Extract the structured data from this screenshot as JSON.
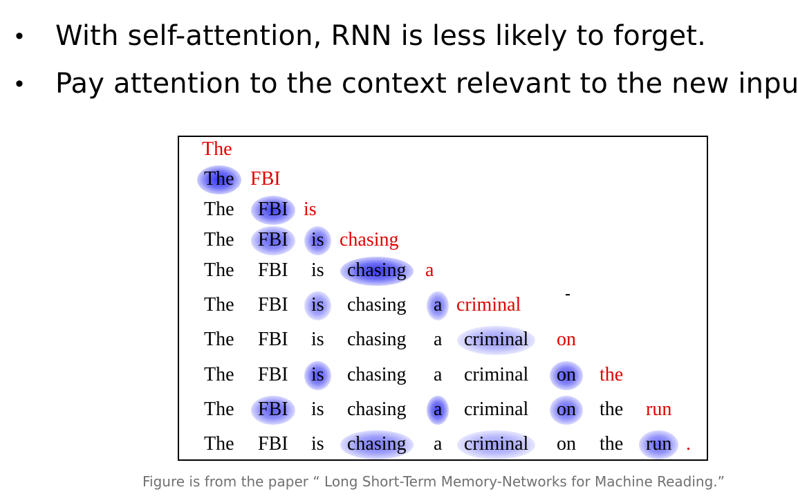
{
  "bullets": [
    "With self-attention, RNN is less likely to forget.",
    "Pay attention to the context relevant to the new input."
  ],
  "figure": {
    "rows": [
      {
        "tokens": [
          {
            "t": "The",
            "red": true
          }
        ]
      },
      {
        "tokens": [
          {
            "t": "The",
            "attn": 0.9
          },
          {
            "t": "FBI",
            "red": true
          }
        ]
      },
      {
        "tokens": [
          {
            "t": "The"
          },
          {
            "t": "FBI",
            "attn": 0.8
          },
          {
            "t": "is",
            "red": true
          }
        ]
      },
      {
        "tokens": [
          {
            "t": "The"
          },
          {
            "t": "FBI",
            "attn": 0.6
          },
          {
            "t": "is",
            "attn": 0.6
          },
          {
            "t": "chasing",
            "red": true
          }
        ]
      },
      {
        "tokens": [
          {
            "t": "The"
          },
          {
            "t": "FBI"
          },
          {
            "t": "is"
          },
          {
            "t": "chasing",
            "attn": 0.9
          },
          {
            "t": "a",
            "red": true
          }
        ]
      },
      {
        "tokens": [
          {
            "t": "The"
          },
          {
            "t": "FBI"
          },
          {
            "t": "is",
            "attn": 0.4
          },
          {
            "t": "chasing"
          },
          {
            "t": "a",
            "attn": 0.5
          },
          {
            "t": "criminal",
            "red": true
          }
        ]
      },
      {
        "tokens": [
          {
            "t": "The"
          },
          {
            "t": "FBI"
          },
          {
            "t": "is"
          },
          {
            "t": "chasing"
          },
          {
            "t": "a"
          },
          {
            "t": "criminal",
            "attn": 0.2
          },
          {
            "t": "on",
            "red": true
          }
        ]
      },
      {
        "tokens": [
          {
            "t": "The"
          },
          {
            "t": "FBI"
          },
          {
            "t": "is",
            "attn": 0.7
          },
          {
            "t": "chasing"
          },
          {
            "t": "a"
          },
          {
            "t": "criminal"
          },
          {
            "t": "on",
            "attn": 0.7
          },
          {
            "t": "the",
            "red": true
          }
        ]
      },
      {
        "tokens": [
          {
            "t": "The"
          },
          {
            "t": "FBI",
            "attn": 0.6
          },
          {
            "t": "is"
          },
          {
            "t": "chasing"
          },
          {
            "t": "a",
            "attn": 0.8
          },
          {
            "t": "criminal"
          },
          {
            "t": "on",
            "attn": 0.6
          },
          {
            "t": "the"
          },
          {
            "t": "run",
            "red": true
          }
        ]
      },
      {
        "tokens": [
          {
            "t": "The"
          },
          {
            "t": "FBI"
          },
          {
            "t": "is"
          },
          {
            "t": "chasing",
            "attn": 0.45
          },
          {
            "t": "a"
          },
          {
            "t": "criminal",
            "attn": 0.2
          },
          {
            "t": "on"
          },
          {
            "t": "the"
          },
          {
            "t": "run",
            "attn": 0.55
          },
          {
            "t": ".",
            "red": true
          }
        ]
      }
    ]
  },
  "caption": "Figure is from the paper “ Long Short-Term Memory-Networks for Machine Reading.”",
  "colors": {
    "new_token": "#e00000",
    "attention": "#2828f0",
    "caption": "#707070"
  }
}
